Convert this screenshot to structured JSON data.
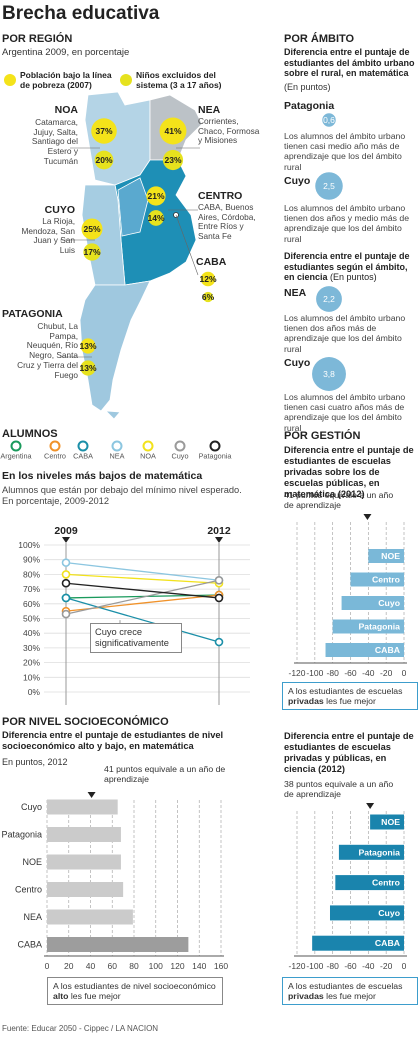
{
  "title": "Brecha educativa",
  "source": "Fuente:  Educar 2050 - Cippec / LA NACION",
  "chart_data": [
    {
      "type": "bubble-map",
      "heading": "POR REGIÓN",
      "subtitle": "Argentina 2009, en porcentaje",
      "categories": [
        "NOA",
        "NEA",
        "CENTRO",
        "CABA",
        "CUYO",
        "PATAGONIA"
      ],
      "descriptions": [
        "Catamarca, Jujuy, Salta, Santiago del Estero y Tucumán",
        "Corrientes, Chaco, Formosa y Misiones",
        "CABA, Buenos Aires, Córdoba, Entre Ríos y Santa Fe",
        null,
        "La Rioja, Mendoza, San Juan y San Luis",
        "Chubut, La Pampa, Neuquén, Río Negro, Santa Cruz y Tierra del Fuego"
      ],
      "series": [
        {
          "name": "Población bajo la línea de pobreza (2007)",
          "color": "#f4e31a",
          "values": [
            37,
            41,
            21,
            12,
            25,
            13
          ],
          "value_labels": [
            "37%",
            "41%",
            "21%",
            "12%",
            "25%",
            "13%"
          ]
        },
        {
          "name": "Niños excluidos del sistema (3 a 17 años)",
          "color": "#e6e21e",
          "values": [
            20,
            23,
            14,
            6,
            17,
            13
          ],
          "value_labels": [
            "20%",
            "23%",
            "14%",
            "6%",
            "17%",
            "13%"
          ]
        }
      ]
    },
    {
      "type": "bubble",
      "heading": "POR ÁMBITO",
      "title": "Diferencia entre el puntaje de estudiantes del ámbito urbano sobre el rural, en matemática",
      "subtitle": "(En puntos)",
      "color": "#7db8d8",
      "categories": [
        "Patagonia",
        "Cuyo"
      ],
      "values": [
        0.6,
        2.5
      ],
      "value_labels": [
        "0,6",
        "2,5"
      ],
      "notes": [
        "Los alumnos del ámbito urbano tienen casi medio año más de aprendizaje que los del ámbito rural",
        "Los alumnos del ámbito urbano tienen dos años y medio más de aprendizaje que los del ámbito rural"
      ]
    },
    {
      "type": "bubble",
      "title": "Diferencia entre el puntaje de estudiantes según el ámbito, en ciencia",
      "subtitle": "(En puntos)",
      "color": "#7db8d8",
      "categories": [
        "NEA",
        "Cuyo"
      ],
      "values": [
        2.2,
        3.8
      ],
      "value_labels": [
        "2,2",
        "3,8"
      ],
      "notes": [
        "Los alumnos del ámbito urbano tienen dos años más de aprendizaje que los del ámbito rural",
        "Los alumnos del ámbito urbano tienen casi cuatro años más de aprendizaje que los del ámbito rural"
      ]
    },
    {
      "type": "line",
      "heading": "ALUMNOS",
      "title": "En los niveles más bajos de matemática",
      "subtitle": "Alumnos que están por debajo del mínimo nivel esperado. En porcentaje, 2009-2012",
      "x": [
        "2009",
        "2012"
      ],
      "series": [
        {
          "name": "Argentina",
          "color": "#1a9a5c",
          "values": [
            64,
            66
          ]
        },
        {
          "name": "Centro",
          "color": "#f0922a",
          "values": [
            55,
            66
          ]
        },
        {
          "name": "CABA",
          "color": "#1b8fa8",
          "values": [
            64,
            34
          ]
        },
        {
          "name": "NEA",
          "color": "#8cc6e0",
          "values": [
            88,
            76
          ]
        },
        {
          "name": "NOA",
          "color": "#f2e21c",
          "values": [
            80,
            74
          ]
        },
        {
          "name": "Cuyo",
          "color": "#9a9a9a",
          "values": [
            53,
            76
          ]
        },
        {
          "name": "Patagonia",
          "color": "#222222",
          "values": [
            74,
            64
          ]
        }
      ],
      "ylim": [
        0,
        100
      ],
      "yticks": [
        {
          "value": 0,
          "label": "0%"
        },
        {
          "value": 10,
          "label": "10%"
        },
        {
          "value": 20,
          "label": "20%"
        },
        {
          "value": 30,
          "label": "30%"
        },
        {
          "value": 40,
          "label": "40%"
        },
        {
          "value": 50,
          "label": "50%"
        },
        {
          "value": 60,
          "label": "60%"
        },
        {
          "value": 70,
          "label": "70%"
        },
        {
          "value": 80,
          "label": "80%"
        },
        {
          "value": 90,
          "label": "90%"
        },
        {
          "value": 100,
          "label": "100%"
        }
      ],
      "grid": true,
      "annotation": "Cuyo crece significativamente"
    },
    {
      "type": "hbar",
      "heading": "POR GESTIÓN",
      "title": "Diferencia entre el puntaje de estudiantes de escuelas privadas sobre los de escuelas públicas, en matemática (2012)",
      "reference_label": "41 puntos equivale a un año de aprendizaje",
      "reference": -41,
      "categories": [
        "NOE",
        "Centro",
        "Cuyo",
        "Patagonia",
        "CABA"
      ],
      "values": [
        -40,
        -60,
        -70,
        -80,
        -88
      ],
      "color": "#7ab8d8",
      "xlim": [
        -120,
        0
      ],
      "xticks": [
        -120,
        -100,
        -80,
        -60,
        -40,
        -20,
        0
      ],
      "note": [
        "A los estudiantes de escuelas ",
        "privadas",
        " les fue mejor"
      ]
    },
    {
      "type": "hbar",
      "heading": "POR NIVEL SOCIOECONÓMICO",
      "title": "Diferencia entre el puntaje de estudiantes de nivel socioeconómico alto y bajo, en matemática",
      "subtitle": "En puntos, 2012",
      "reference_label": "41 puntos equivale a un año de aprendizaje",
      "reference": 41,
      "categories": [
        "Cuyo",
        "Patagonia",
        "NOE",
        "Centro",
        "NEA",
        "CABA"
      ],
      "values": [
        65,
        68,
        68,
        70,
        79,
        130
      ],
      "colors": [
        "#cbcbcb",
        "#cbcbcb",
        "#cbcbcb",
        "#cbcbcb",
        "#cbcbcb",
        "#9d9d9d"
      ],
      "xlim": [
        0,
        160
      ],
      "xticks": [
        0,
        20,
        40,
        60,
        80,
        100,
        120,
        140,
        160
      ],
      "note": [
        "A los estudiantes de nivel socioeconómico ",
        "alto",
        " les fue mejor"
      ]
    },
    {
      "type": "hbar",
      "title": "Diferencia entre el puntaje de estudiantes de escuelas privadas y públicas, en ciencia (2012)",
      "reference_label": "38 puntos equivale a un año de aprendizaje",
      "reference": -38,
      "categories": [
        "NOE",
        "Patagonia",
        "Centro",
        "Cuyo",
        "CABA"
      ],
      "values": [
        -38,
        -73,
        -77,
        -83,
        -103
      ],
      "color": "#1a84ad",
      "xlim": [
        -120,
        0
      ],
      "xticks": [
        -120,
        -100,
        -80,
        -60,
        -40,
        -20,
        0
      ],
      "note": [
        "A los estudiantes de escuelas ",
        "privadas",
        " les fue mejor"
      ]
    }
  ]
}
